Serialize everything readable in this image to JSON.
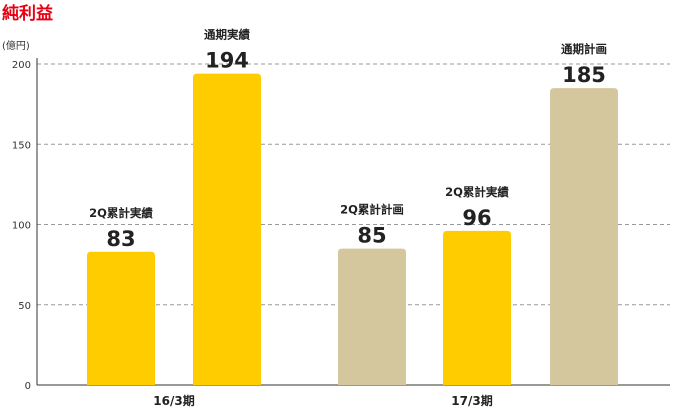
{
  "chart_data": {
    "type": "bar",
    "title": "純利益",
    "ylabel": "(億円)",
    "ylim": [
      0,
      200
    ],
    "yticks": [
      0,
      50,
      100,
      150,
      200
    ],
    "grid": "horizontal-dashed",
    "groups": [
      {
        "label": "16/3期",
        "bars": [
          {
            "caption": "2Q累計実績",
            "value": 83,
            "kind": "actual"
          },
          {
            "caption": "通期実績",
            "value": 194,
            "kind": "actual"
          }
        ]
      },
      {
        "label": "17/3期",
        "bars": [
          {
            "caption": "2Q累計計画",
            "value": 85,
            "kind": "plan"
          },
          {
            "caption": "2Q累計実績",
            "value": 96,
            "kind": "actual"
          },
          {
            "caption": "通期計画",
            "value": 185,
            "kind": "plan"
          }
        ]
      }
    ],
    "colors": {
      "actual": "#ffcc00",
      "plan": "#d4c79d",
      "title": "#e60012",
      "grid": "#999999"
    }
  }
}
